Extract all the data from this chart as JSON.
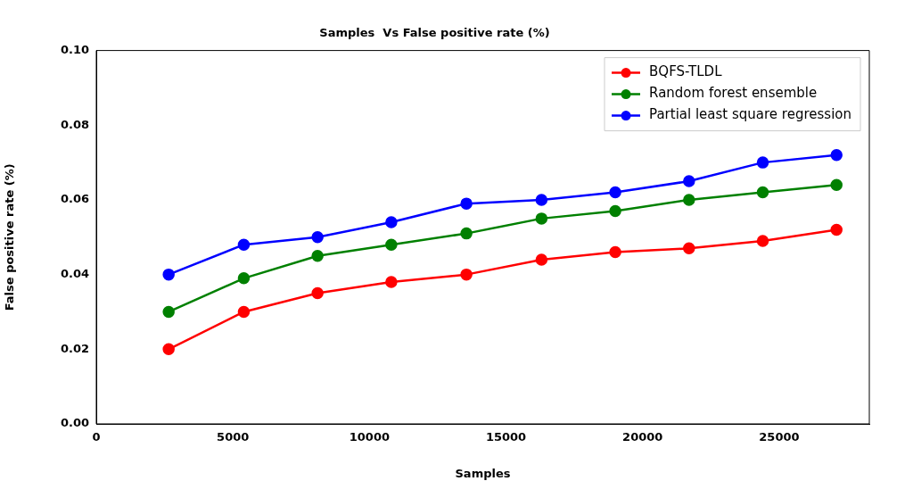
{
  "chart_data": {
    "type": "line",
    "title": "Samples  Vs False positive rate (%)",
    "xlabel": "Samples",
    "ylabel": "False positive rate (%)",
    "x": [
      2650,
      5400,
      8100,
      10800,
      13550,
      16300,
      19000,
      21700,
      24400,
      27100
    ],
    "series": [
      {
        "name": "BQFS-TLDL",
        "color": "#ff0000",
        "values": [
          0.02,
          0.03,
          0.035,
          0.038,
          0.04,
          0.044,
          0.046,
          0.047,
          0.049,
          0.052
        ]
      },
      {
        "name": "Random forest ensemble",
        "color": "#008000",
        "values": [
          0.03,
          0.039,
          0.045,
          0.048,
          0.051,
          0.055,
          0.057,
          0.06,
          0.062,
          0.064
        ]
      },
      {
        "name": "Partial least square regression",
        "color": "#0000ff",
        "values": [
          0.04,
          0.048,
          0.05,
          0.054,
          0.059,
          0.06,
          0.062,
          0.065,
          0.07,
          0.072
        ]
      }
    ],
    "xlim": [
      0,
      28300
    ],
    "xticks": [
      0,
      5000,
      10000,
      15000,
      20000,
      25000
    ],
    "ylim": [
      0,
      0.1
    ],
    "yticks": [
      {
        "value": 0,
        "label": "0.00"
      },
      {
        "value": 0.02,
        "label": "0.02"
      },
      {
        "value": 0.04,
        "label": "0.04"
      },
      {
        "value": 0.06,
        "label": "0.06"
      },
      {
        "value": 0.08,
        "label": "0.08"
      },
      {
        "value": 0.1,
        "label": "0.10"
      }
    ],
    "grid": false,
    "legend": "top right",
    "marker": "circle",
    "line_style": "solid"
  }
}
